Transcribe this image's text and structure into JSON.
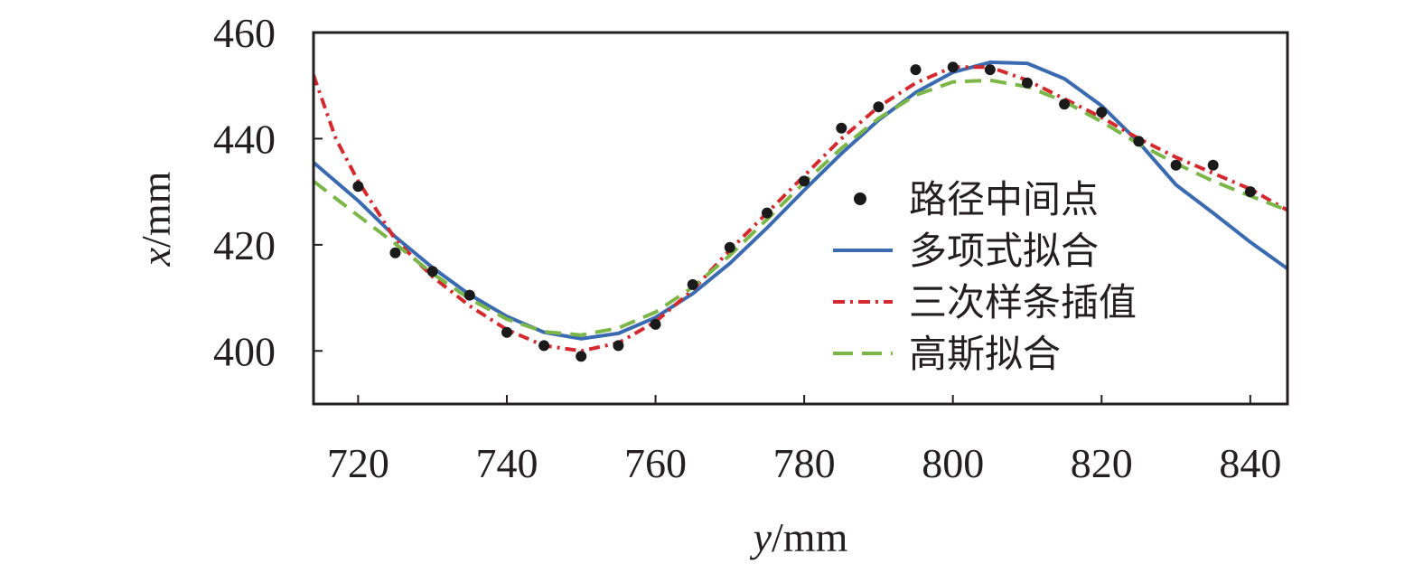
{
  "chart_data": {
    "type": "line",
    "xlabel": "y/mm",
    "ylabel": "x/mm",
    "xlim": [
      714,
      845
    ],
    "ylim": [
      390,
      460
    ],
    "xticks": [
      720,
      740,
      760,
      780,
      800,
      820,
      840
    ],
    "yticks": [
      400,
      420,
      440,
      460
    ],
    "grid": false,
    "legend_position": "right",
    "series": [
      {
        "name": "路径中间点",
        "kind": "scatter",
        "color": "#1a1a1a",
        "x": [
          720,
          725,
          730,
          735,
          740,
          745,
          750,
          755,
          760,
          765,
          770,
          775,
          780,
          785,
          790,
          795,
          800,
          805,
          810,
          815,
          820,
          825,
          830,
          835,
          840
        ],
        "y": [
          431,
          418.5,
          415,
          410.5,
          403.5,
          401,
          399,
          401,
          405,
          412.5,
          419.5,
          426,
          432,
          442,
          446,
          453,
          453.5,
          453,
          450.5,
          446.5,
          445,
          439.5,
          435,
          435,
          430
        ]
      },
      {
        "name": "多项式拟合",
        "kind": "line",
        "style": "solid",
        "color": "#3a6ab0",
        "x": [
          714,
          720,
          725,
          730,
          735,
          740,
          745,
          750,
          755,
          760,
          765,
          770,
          775,
          780,
          785,
          790,
          795,
          800,
          805,
          810,
          815,
          820,
          825,
          830,
          835,
          840,
          845
        ],
        "y": [
          435.5,
          428.3,
          421.5,
          415.7,
          410.6,
          406.5,
          403.5,
          402.3,
          403.3,
          406.3,
          410.8,
          416.5,
          423.2,
          430.3,
          437.2,
          443.5,
          448.7,
          452.5,
          454.4,
          454.2,
          451.3,
          446.2,
          439.3,
          431.3,
          426,
          420.5,
          415.5
        ]
      },
      {
        "name": "三次样条插值",
        "kind": "line",
        "style": "dash-dot",
        "color": "#d42a2f",
        "x": [
          714,
          717,
          720,
          725,
          730,
          735,
          740,
          745,
          750,
          755,
          760,
          765,
          770,
          775,
          780,
          785,
          790,
          795,
          800,
          805,
          810,
          815,
          820,
          825,
          830,
          835,
          840,
          845
        ],
        "y": [
          452,
          440,
          432,
          421,
          414,
          408.5,
          404,
          401,
          400,
          401.5,
          405.5,
          411.5,
          419,
          426,
          433,
          440,
          446,
          450.5,
          453.5,
          453.5,
          451,
          447.5,
          444,
          440,
          436.5,
          433.5,
          430.5,
          426.5
        ]
      },
      {
        "name": "高斯拟合",
        "kind": "line",
        "style": "dashed",
        "color": "#7ab648",
        "x": [
          714,
          720,
          725,
          730,
          735,
          740,
          745,
          750,
          755,
          760,
          765,
          770,
          775,
          780,
          785,
          790,
          795,
          800,
          805,
          810,
          815,
          820,
          825,
          830,
          835,
          840,
          845
        ],
        "y": [
          432,
          425.5,
          420.2,
          414.6,
          409.8,
          406,
          403.6,
          403,
          404.3,
          407.3,
          412,
          418,
          424.8,
          431.7,
          438.2,
          443.8,
          448.2,
          450.7,
          451,
          449.8,
          447,
          443.2,
          439,
          435.3,
          432,
          429.2,
          426.5
        ]
      }
    ]
  }
}
